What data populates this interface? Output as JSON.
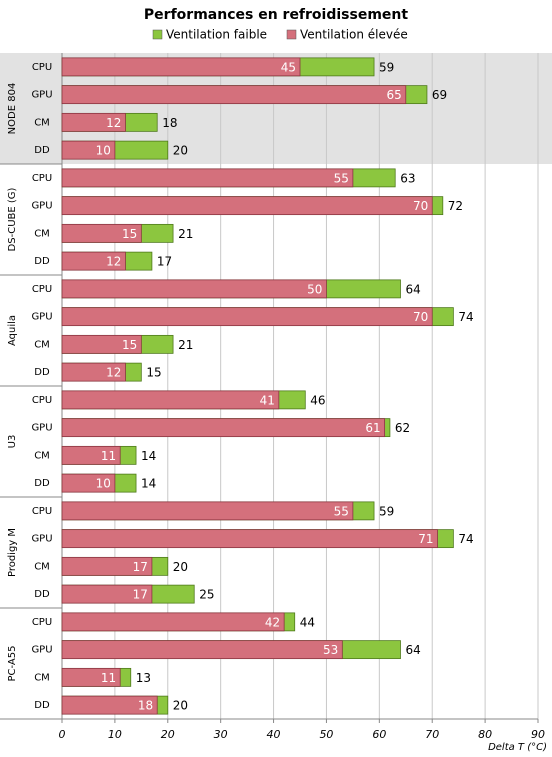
{
  "chart_data": {
    "type": "overlap-barh",
    "title": "Performances en refroidissement",
    "x_label": "Delta T (°C)",
    "groups": [
      {
        "name": "NODE 804",
        "categories": [
          "CPU",
          "GPU",
          "CM",
          "DD"
        ]
      },
      {
        "name": "DS-CUBE (G)",
        "categories": [
          "CPU",
          "GPU",
          "CM",
          "DD"
        ]
      },
      {
        "name": "Aquila",
        "categories": [
          "CPU",
          "GPU",
          "CM",
          "DD"
        ]
      },
      {
        "name": "U3",
        "categories": [
          "CPU",
          "GPU",
          "CM",
          "DD"
        ]
      },
      {
        "name": "Prodigy M",
        "categories": [
          "CPU",
          "GPU",
          "CM",
          "DD"
        ]
      },
      {
        "name": "PC-A55",
        "categories": [
          "CPU",
          "GPU",
          "CM",
          "DD"
        ]
      }
    ],
    "series": [
      {
        "name": "Ventilation faible",
        "color": "#8cc63f",
        "values": [
          59,
          69,
          18,
          20,
          63,
          72,
          21,
          17,
          64,
          74,
          21,
          15,
          46,
          62,
          14,
          14,
          59,
          74,
          20,
          25,
          44,
          64,
          13,
          20
        ]
      },
      {
        "name": "Ventilation élevée",
        "color": "#d4707c",
        "values": [
          45,
          65,
          12,
          10,
          55,
          70,
          15,
          12,
          50,
          70,
          15,
          12,
          41,
          61,
          11,
          10,
          55,
          71,
          17,
          17,
          42,
          53,
          11,
          18
        ]
      }
    ],
    "xlim": [
      0,
      90
    ],
    "xticks": [
      0,
      10,
      20,
      30,
      40,
      50,
      60,
      70,
      80,
      90
    ],
    "grid": true
  }
}
